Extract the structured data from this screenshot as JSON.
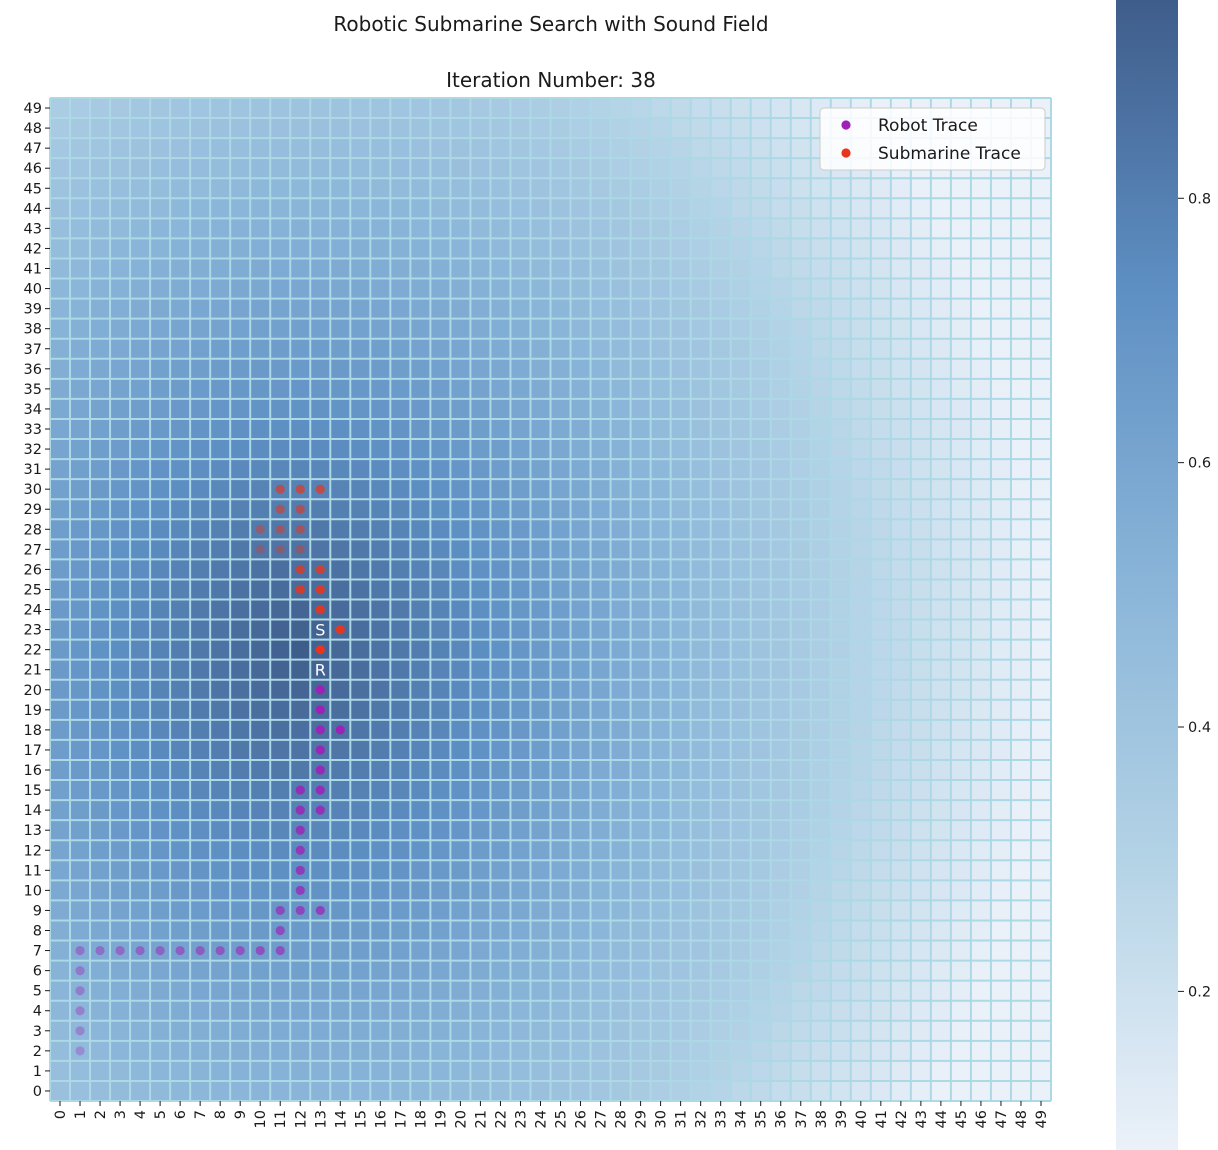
{
  "chart_data": {
    "type": "heatmap",
    "title": "Robotic Submarine Search with Sound Field",
    "subtitle": "Iteration Number: 38",
    "grid_size": 50,
    "x_ticks": [
      "0",
      "1",
      "2",
      "3",
      "4",
      "5",
      "6",
      "7",
      "8",
      "9",
      "10",
      "11",
      "12",
      "13",
      "14",
      "15",
      "16",
      "17",
      "18",
      "19",
      "20",
      "21",
      "22",
      "23",
      "24",
      "25",
      "26",
      "27",
      "28",
      "29",
      "30",
      "31",
      "32",
      "33",
      "34",
      "35",
      "36",
      "37",
      "38",
      "39",
      "40",
      "41",
      "42",
      "43",
      "44",
      "45",
      "46",
      "47",
      "48",
      "49"
    ],
    "y_ticks": [
      "0",
      "1",
      "2",
      "3",
      "4",
      "5",
      "6",
      "7",
      "8",
      "9",
      "10",
      "11",
      "12",
      "13",
      "14",
      "15",
      "16",
      "17",
      "18",
      "19",
      "20",
      "21",
      "22",
      "23",
      "24",
      "25",
      "26",
      "27",
      "28",
      "29",
      "30",
      "31",
      "32",
      "33",
      "34",
      "35",
      "36",
      "37",
      "38",
      "39",
      "40",
      "41",
      "42",
      "43",
      "44",
      "45",
      "46",
      "47",
      "48",
      "49"
    ],
    "field_peak": [
      12,
      22
    ],
    "value_range": [
      0.08,
      0.95
    ],
    "colorbar_ticks": [
      0.2,
      0.4,
      0.6,
      0.8
    ],
    "colorbar_labels": [
      "0.2",
      "0.4",
      "0.6",
      "0.8"
    ],
    "colormap": [
      "#ebf1f9",
      "#b4d3e6",
      "#89b4d8",
      "#5e8fc3",
      "#3f5d8b"
    ],
    "grid_line_color": "#add8e6",
    "legend": {
      "position": "top-right",
      "items": [
        {
          "label": "Robot Trace",
          "color": "#a020b8"
        },
        {
          "label": "Submarine Trace",
          "color": "#e8351e"
        }
      ]
    },
    "robot_trace": [
      [
        1,
        2
      ],
      [
        1,
        3
      ],
      [
        1,
        4
      ],
      [
        1,
        5
      ],
      [
        1,
        6
      ],
      [
        1,
        7
      ],
      [
        2,
        7
      ],
      [
        3,
        7
      ],
      [
        4,
        7
      ],
      [
        5,
        7
      ],
      [
        6,
        7
      ],
      [
        7,
        7
      ],
      [
        8,
        7
      ],
      [
        9,
        7
      ],
      [
        10,
        7
      ],
      [
        11,
        7
      ],
      [
        11,
        8
      ],
      [
        11,
        9
      ],
      [
        12,
        9
      ],
      [
        13,
        9
      ],
      [
        12,
        10
      ],
      [
        12,
        11
      ],
      [
        12,
        12
      ],
      [
        12,
        13
      ],
      [
        12,
        14
      ],
      [
        13,
        14
      ],
      [
        12,
        15
      ],
      [
        13,
        15
      ],
      [
        13,
        16
      ],
      [
        13,
        17
      ],
      [
        13,
        18
      ],
      [
        14,
        18
      ],
      [
        13,
        19
      ],
      [
        13,
        20
      ]
    ],
    "submarine_trace": [
      [
        10,
        27
      ],
      [
        11,
        27
      ],
      [
        12,
        27
      ],
      [
        10,
        28
      ],
      [
        11,
        28
      ],
      [
        12,
        28
      ],
      [
        11,
        29
      ],
      [
        12,
        29
      ],
      [
        11,
        30
      ],
      [
        12,
        30
      ],
      [
        13,
        30
      ],
      [
        12,
        26
      ],
      [
        13,
        26
      ],
      [
        12,
        25
      ],
      [
        13,
        25
      ],
      [
        13,
        24
      ],
      [
        14,
        23
      ],
      [
        13,
        22
      ]
    ],
    "robot_position": {
      "x": 13,
      "y": 21,
      "label": "R"
    },
    "submarine_position": {
      "x": 13,
      "y": 23,
      "label": "S"
    }
  }
}
